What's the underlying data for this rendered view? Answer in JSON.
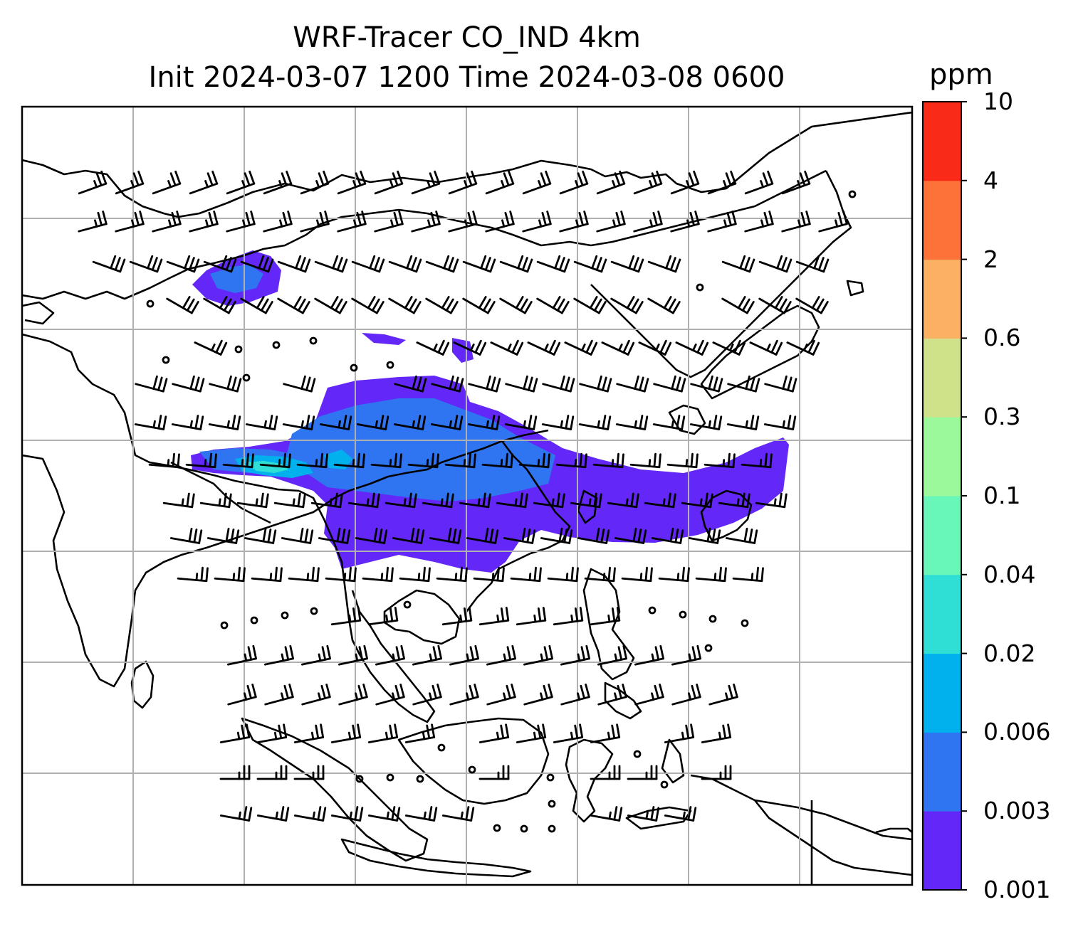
{
  "title_line1": "WRF-Tracer CO_IND 4km",
  "title_line2": "Init 2024-03-07 1200 Time 2024-03-08 0600",
  "colorbar": {
    "unit": "ppm",
    "levels": [
      "0.001",
      "0.003",
      "0.006",
      "0.02",
      "0.04",
      "0.1",
      "0.3",
      "0.6",
      "2",
      "4",
      "10"
    ],
    "colors": [
      "#6328f7",
      "#2f75f1",
      "#00b1ee",
      "#2fdfd6",
      "#68f7b8",
      "#9bf99c",
      "#cfe189",
      "#fcb063",
      "#fc7239",
      "#fa2a18"
    ]
  },
  "map": {
    "grid_color": "#b0b0b0",
    "coastline_color": "#000000",
    "plume_colors": {
      "low": "#6328f7",
      "mid": "#2f75f1",
      "high": "#00b1ee",
      "peak": "#2fdfd6"
    }
  }
}
